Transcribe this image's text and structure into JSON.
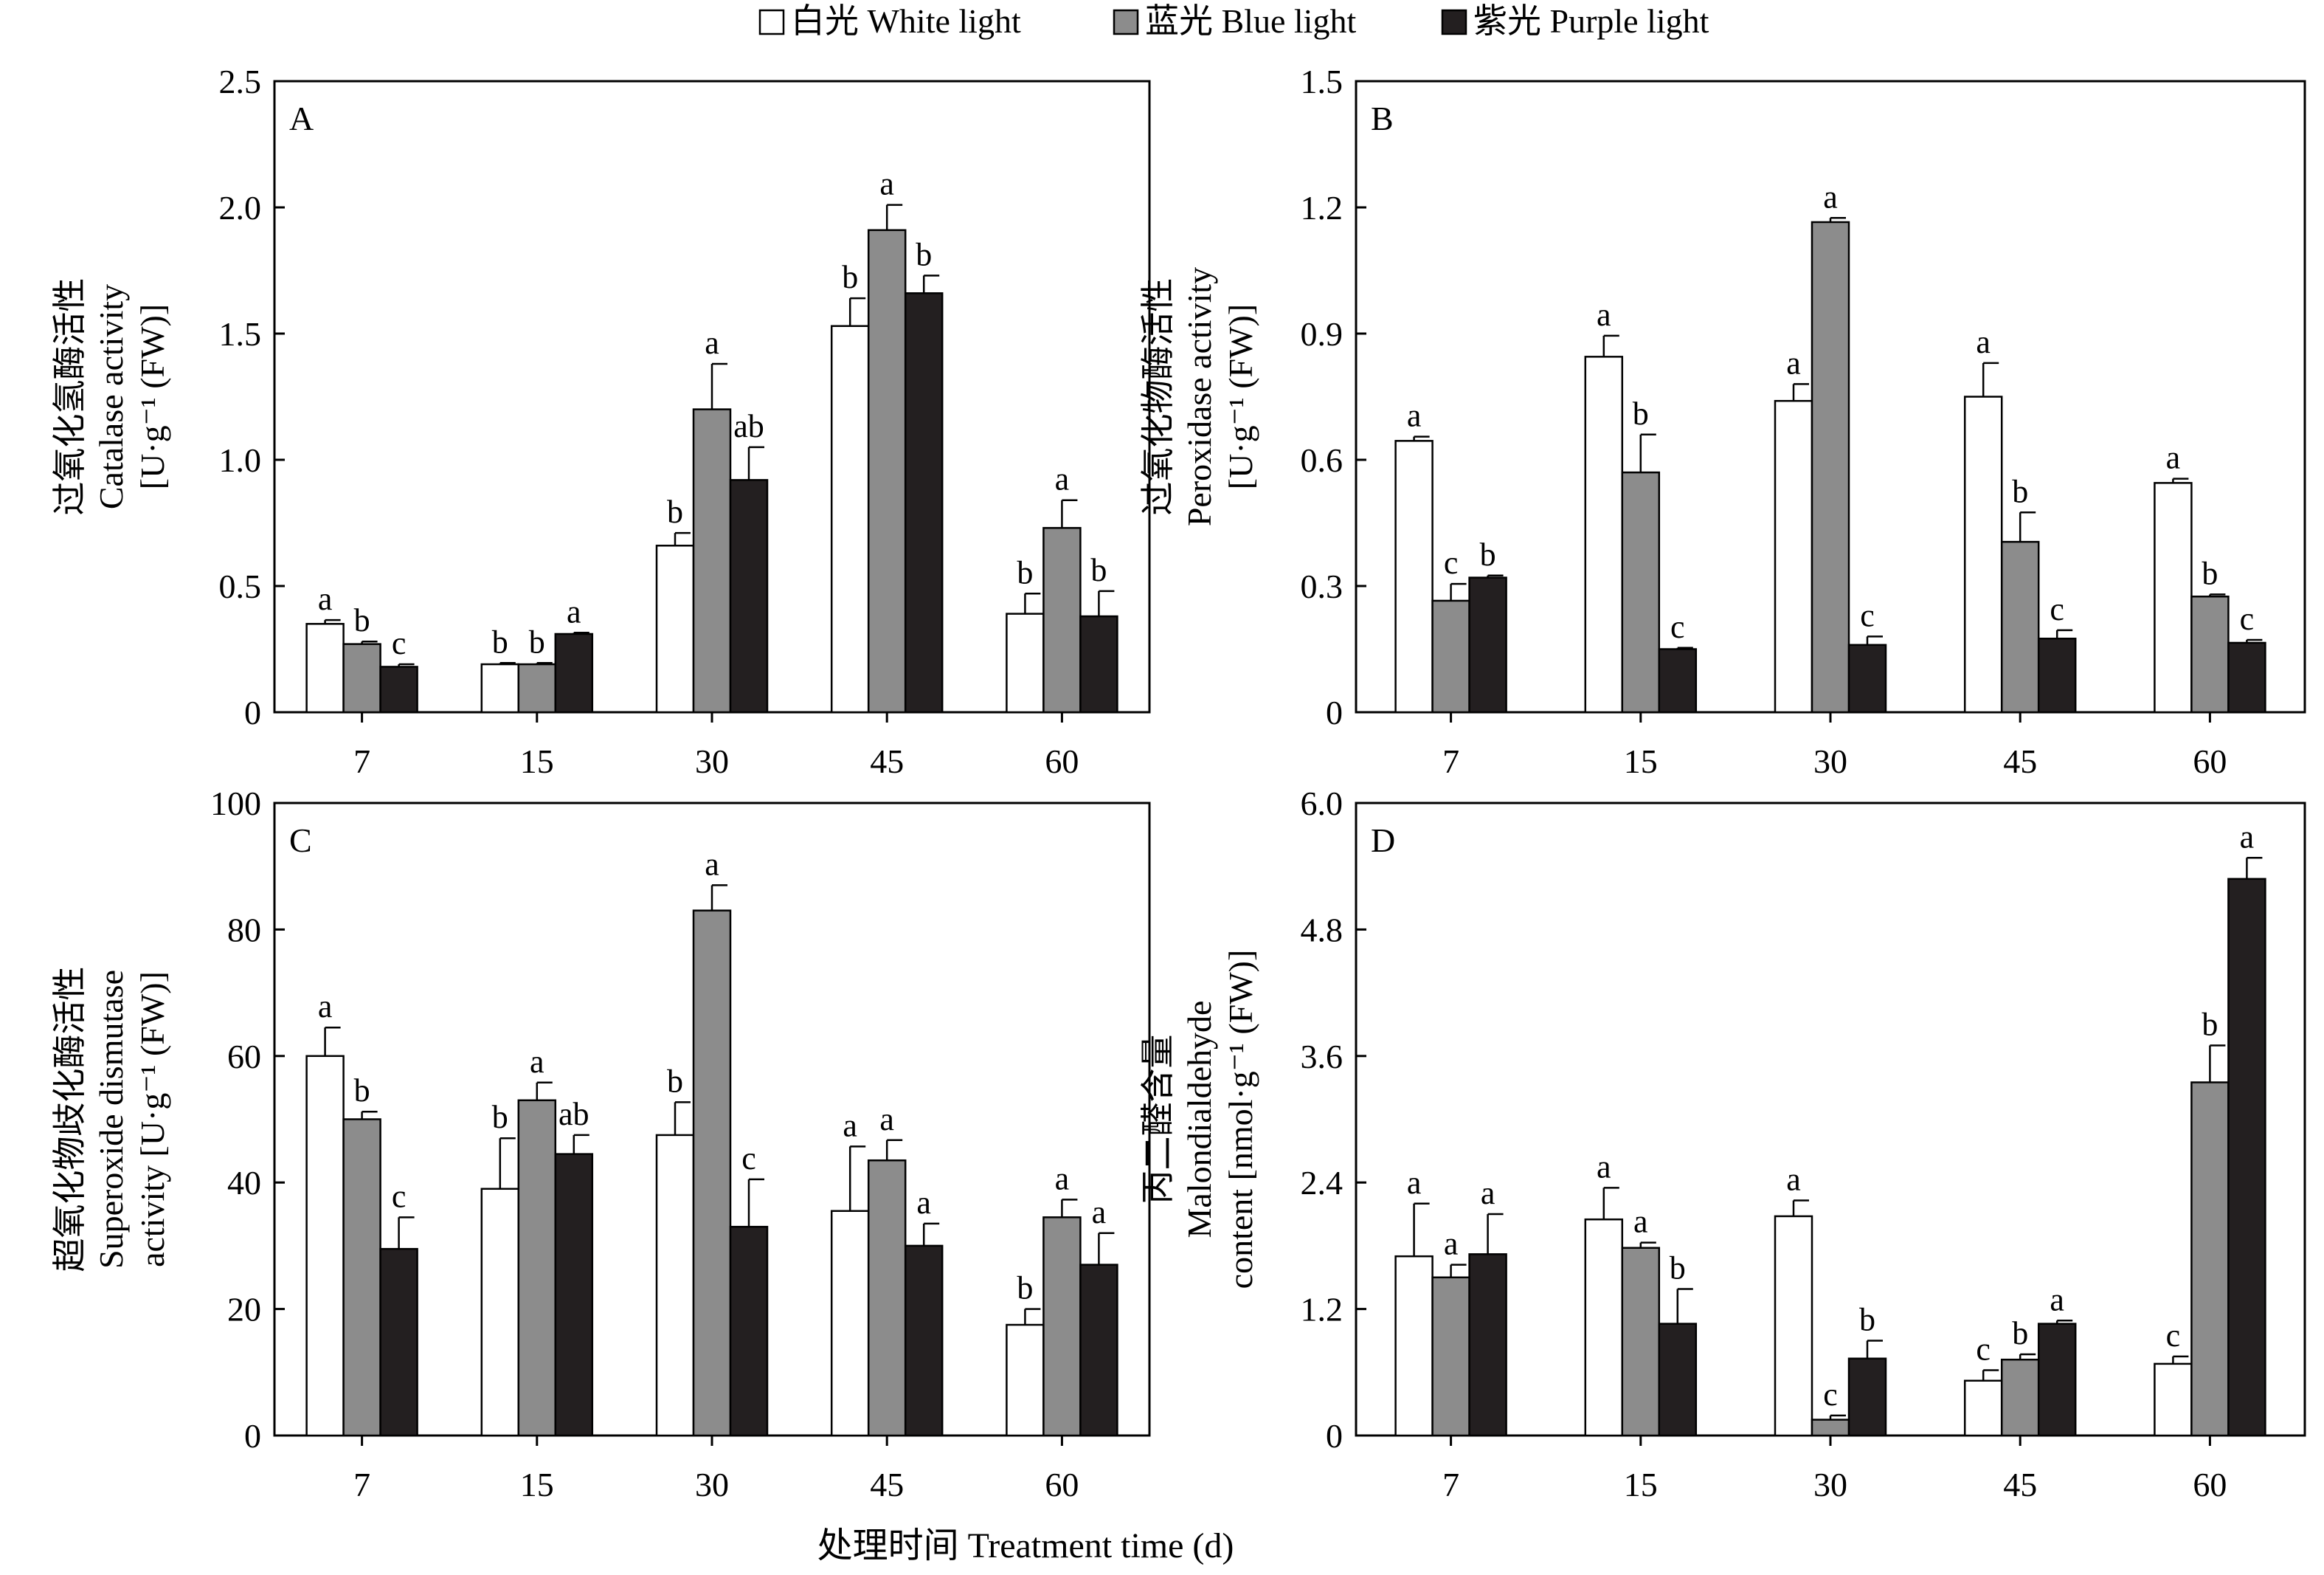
{
  "legend": {
    "items": [
      {
        "label": "白光 White light",
        "color": "#ffffff"
      },
      {
        "label": "蓝光 Blue light",
        "color": "#8c8c8c"
      },
      {
        "label": "紫光 Purple light",
        "color": "#231f20"
      }
    ]
  },
  "xlabel": "处理时间 Treatment time (d)",
  "chart_data": [
    {
      "type": "bar",
      "panel": "A",
      "ylabel": [
        "过氧化氢酶活性",
        "Catalase activity",
        "[U·g⁻¹ (FW)]"
      ],
      "ylim": [
        0,
        2.5
      ],
      "yticks": [
        "0",
        "0.5",
        "1.0",
        "1.5",
        "2.0",
        "2.5"
      ],
      "categories": [
        "7",
        "15",
        "30",
        "45",
        "60"
      ],
      "series": [
        {
          "name": "白光 White light",
          "values": [
            0.35,
            0.19,
            0.66,
            1.53,
            0.39
          ],
          "errors": [
            0.015,
            0.005,
            0.05,
            0.11,
            0.08
          ],
          "letters": [
            "a",
            "b",
            "b",
            "b",
            "b"
          ]
        },
        {
          "name": "蓝光 Blue light",
          "values": [
            0.27,
            0.19,
            1.2,
            1.91,
            0.73
          ],
          "errors": [
            0.01,
            0.005,
            0.18,
            0.1,
            0.11
          ],
          "letters": [
            "b",
            "b",
            "a",
            "a",
            "a"
          ]
        },
        {
          "name": "紫光 Purple light",
          "values": [
            0.18,
            0.31,
            0.92,
            1.66,
            0.38
          ],
          "errors": [
            0.01,
            0.005,
            0.13,
            0.07,
            0.1
          ],
          "letters": [
            "c",
            "a",
            "ab",
            "b",
            "b"
          ]
        }
      ]
    },
    {
      "type": "bar",
      "panel": "B",
      "ylabel": [
        "过氧化物酶活性",
        "Peroxidase activity",
        "[U·g⁻¹ (FW)]"
      ],
      "ylim": [
        0,
        1.5
      ],
      "yticks": [
        "0",
        "0.3",
        "0.6",
        "0.9",
        "1.2",
        "1.5"
      ],
      "categories": [
        "7",
        "15",
        "30",
        "45",
        "60"
      ],
      "series": [
        {
          "name": "白光 White light",
          "values": [
            0.645,
            0.845,
            0.74,
            0.75,
            0.545
          ],
          "errors": [
            0.01,
            0.05,
            0.04,
            0.08,
            0.01
          ],
          "letters": [
            "a",
            "a",
            "a",
            "a",
            "a"
          ]
        },
        {
          "name": "蓝光 Blue light",
          "values": [
            0.265,
            0.57,
            1.165,
            0.405,
            0.275
          ],
          "errors": [
            0.04,
            0.09,
            0.01,
            0.07,
            0.005
          ],
          "letters": [
            "c",
            "b",
            "a",
            "b",
            "b"
          ]
        },
        {
          "name": "紫光 Purple light",
          "values": [
            0.32,
            0.15,
            0.16,
            0.175,
            0.165
          ],
          "errors": [
            0.005,
            0.003,
            0.02,
            0.02,
            0.007
          ],
          "letters": [
            "b",
            "c",
            "c",
            "c",
            "c"
          ]
        }
      ]
    },
    {
      "type": "bar",
      "panel": "C",
      "ylabel": [
        "超氧化物歧化酶活性",
        "Superoxide dismutase",
        "activity [U·g⁻¹ (FW)]"
      ],
      "ylim": [
        0,
        100
      ],
      "yticks": [
        "0",
        "20",
        "40",
        "60",
        "80",
        "100"
      ],
      "categories": [
        "7",
        "15",
        "30",
        "45",
        "60"
      ],
      "series": [
        {
          "name": "白光 White light",
          "values": [
            60,
            39,
            47.5,
            35.5,
            17.5
          ],
          "errors": [
            4.5,
            8,
            5.2,
            10.2,
            2.5
          ],
          "letters": [
            "a",
            "b",
            "b",
            "a",
            "b"
          ]
        },
        {
          "name": "蓝光 Blue light",
          "values": [
            50,
            53,
            83,
            43.5,
            34.5
          ],
          "errors": [
            1.2,
            2.8,
            4,
            3.2,
            2.8
          ],
          "letters": [
            "b",
            "a",
            "a",
            "a",
            "a"
          ]
        },
        {
          "name": "紫光 Purple light",
          "values": [
            29.5,
            44.5,
            33,
            30,
            27
          ],
          "errors": [
            5,
            3,
            7.5,
            3.5,
            5
          ],
          "letters": [
            "c",
            "ab",
            "c",
            "a",
            "a"
          ]
        }
      ]
    },
    {
      "type": "bar",
      "panel": "D",
      "ylabel": [
        "丙二醛含量",
        "Malondialdehyde",
        "content [nmol·g⁻¹ (FW)]"
      ],
      "ylim": [
        0,
        6
      ],
      "yticks": [
        "0",
        "1.2",
        "2.4",
        "3.6",
        "4.8",
        "6.0"
      ],
      "categories": [
        "7",
        "15",
        "30",
        "45",
        "60"
      ],
      "series": [
        {
          "name": "白光 White light",
          "values": [
            1.7,
            2.05,
            2.08,
            0.52,
            0.68
          ],
          "errors": [
            0.5,
            0.3,
            0.15,
            0.1,
            0.07
          ],
          "letters": [
            "a",
            "a",
            "a",
            "c",
            "c"
          ]
        },
        {
          "name": "蓝光 Blue light",
          "values": [
            1.5,
            1.78,
            0.15,
            0.72,
            3.35
          ],
          "errors": [
            0.12,
            0.05,
            0.04,
            0.05,
            0.35
          ],
          "letters": [
            "a",
            "a",
            "c",
            "b",
            "b"
          ]
        },
        {
          "name": "紫光 Purple light",
          "values": [
            1.72,
            1.06,
            0.73,
            1.06,
            5.28
          ],
          "errors": [
            0.38,
            0.33,
            0.17,
            0.03,
            0.2
          ],
          "letters": [
            "a",
            "b",
            "b",
            "a",
            "a"
          ]
        }
      ]
    }
  ]
}
